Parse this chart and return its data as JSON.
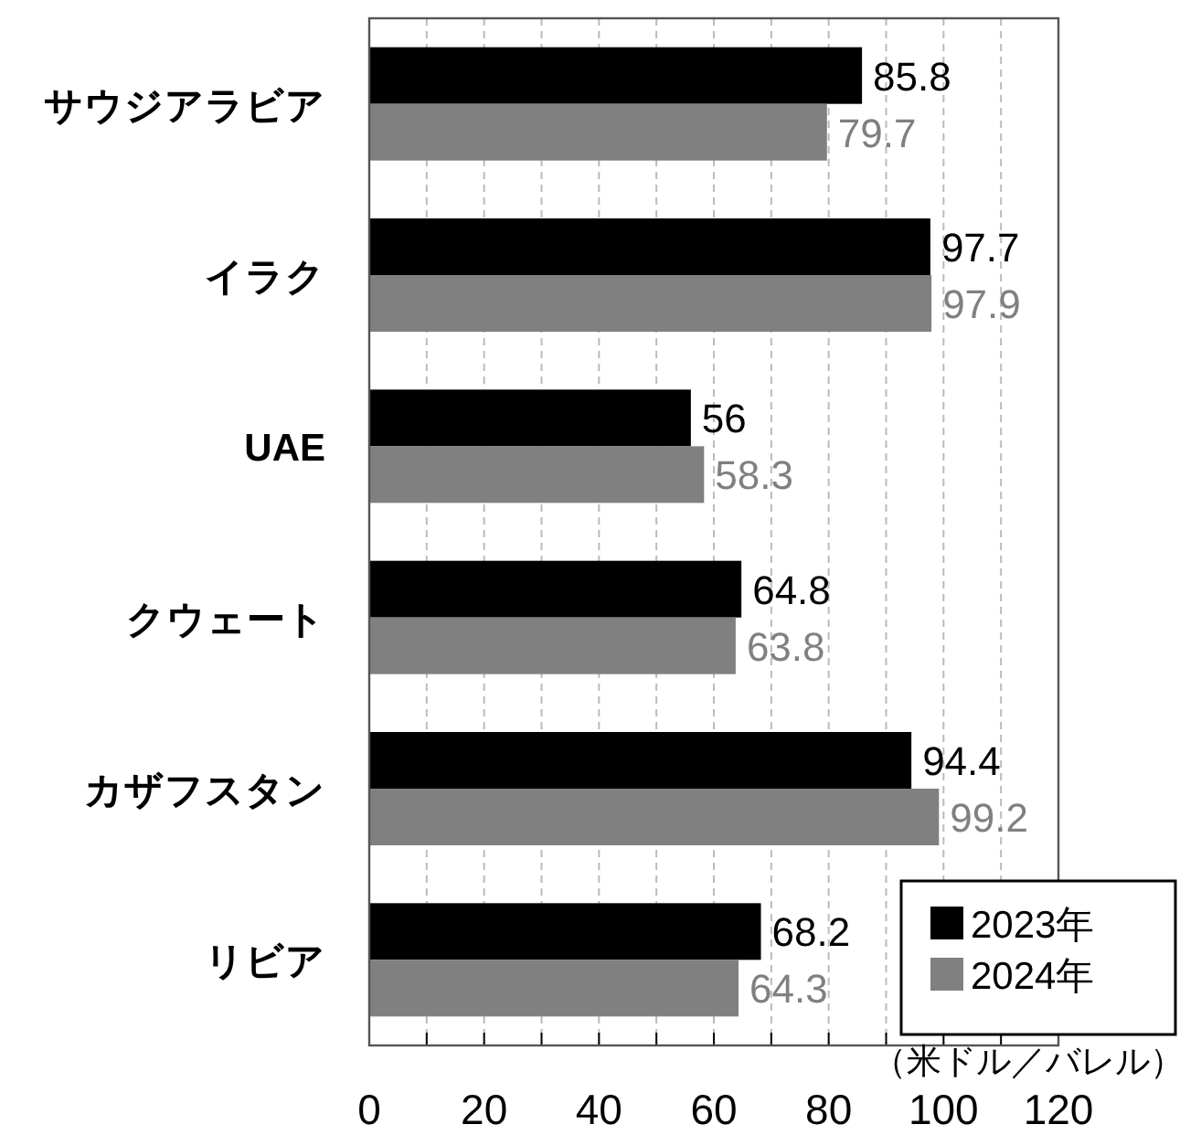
{
  "chart_data": {
    "type": "bar",
    "orientation": "horizontal",
    "categories": [
      "サウジアラビア",
      "イラク",
      "UAE",
      "クウェート",
      "カザフスタン",
      "リビア"
    ],
    "series": [
      {
        "name": "2023年",
        "color": "#000000",
        "values": [
          85.8,
          97.7,
          56,
          64.8,
          94.4,
          68.2
        ]
      },
      {
        "name": "2024年",
        "color": "#808080",
        "values": [
          79.7,
          97.9,
          58.3,
          63.8,
          99.2,
          64.3
        ]
      }
    ],
    "xlabel": "（米ドル／バレル）",
    "xlim": [
      0,
      120
    ],
    "xticks": [
      0,
      {
        "value": 10,
        "label": null
      },
      20,
      {
        "value": 30,
        "label": null
      },
      40,
      {
        "value": 50,
        "label": null
      },
      60,
      {
        "value": 70,
        "label": null
      },
      80,
      {
        "value": 90,
        "label": null
      },
      100,
      {
        "value": 110,
        "label": null
      },
      120
    ],
    "grid": "x",
    "legend": "bottom right",
    "data_labels": true
  }
}
